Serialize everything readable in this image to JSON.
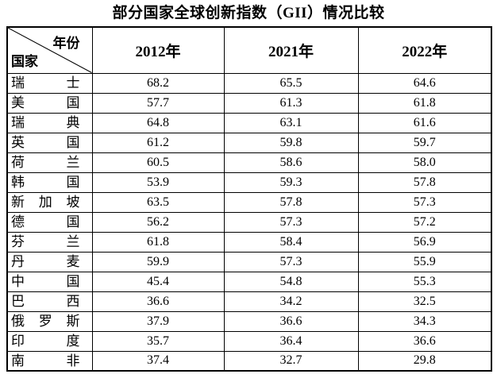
{
  "chart_data": {
    "type": "table",
    "title": "部分国家全球创新指数（GII）情况比较",
    "corner_header": {
      "top_right": "年份",
      "bottom_left": "国家"
    },
    "columns": [
      "2012年",
      "2021年",
      "2022年"
    ],
    "rows": [
      {
        "country": "瑞士",
        "values": [
          "68.2",
          "65.5",
          "64.6"
        ]
      },
      {
        "country": "美国",
        "values": [
          "57.7",
          "61.3",
          "61.8"
        ]
      },
      {
        "country": "瑞典",
        "values": [
          "64.8",
          "63.1",
          "61.6"
        ]
      },
      {
        "country": "英国",
        "values": [
          "61.2",
          "59.8",
          "59.7"
        ]
      },
      {
        "country": "荷兰",
        "values": [
          "60.5",
          "58.6",
          "58.0"
        ]
      },
      {
        "country": "韩国",
        "values": [
          "53.9",
          "59.3",
          "57.8"
        ]
      },
      {
        "country": "新加坡",
        "values": [
          "63.5",
          "57.8",
          "57.3"
        ]
      },
      {
        "country": "德国",
        "values": [
          "56.2",
          "57.3",
          "57.2"
        ]
      },
      {
        "country": "芬兰",
        "values": [
          "61.8",
          "58.4",
          "56.9"
        ]
      },
      {
        "country": "丹麦",
        "values": [
          "59.9",
          "57.3",
          "55.9"
        ]
      },
      {
        "country": "中国",
        "values": [
          "45.4",
          "54.8",
          "55.3"
        ]
      },
      {
        "country": "巴西",
        "values": [
          "36.6",
          "34.2",
          "32.5"
        ]
      },
      {
        "country": "俄罗斯",
        "values": [
          "37.9",
          "36.6",
          "34.3"
        ]
      },
      {
        "country": "印度",
        "values": [
          "35.7",
          "36.4",
          "36.6"
        ]
      },
      {
        "country": "南非",
        "values": [
          "37.4",
          "32.7",
          "29.8"
        ]
      }
    ],
    "text_color": "#000000",
    "border_color": "#000000",
    "background_color": "#ffffff"
  }
}
